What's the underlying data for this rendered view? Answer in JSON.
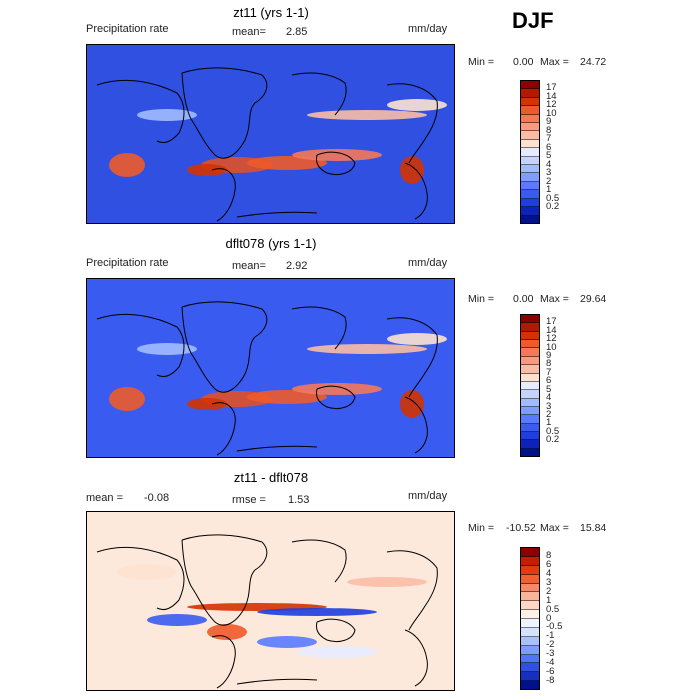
{
  "season": "DJF",
  "panels": [
    {
      "title": "zt11 (yrs 1-1)",
      "left_label": "Precipitation rate",
      "mean_label": "mean=",
      "mean_value": "2.85",
      "units": "mm/day",
      "min_label": "Min =",
      "min_value": "0.00",
      "max_label": "Max =",
      "max_value": "24.72",
      "colorbar": {
        "colors": [
          "#8b0000",
          "#b01a00",
          "#d43200",
          "#ee5a2a",
          "#f4785a",
          "#f89a80",
          "#fbbca6",
          "#fde2d0",
          "#e6ecff",
          "#c4d4ff",
          "#a2bbff",
          "#7f9cff",
          "#5a7bff",
          "#3a5bf0",
          "#1e3ee0",
          "#0c22b8",
          "#00118c"
        ],
        "ticks": [
          "17",
          "14",
          "12",
          "10",
          "9",
          "8",
          "7",
          "6",
          "5",
          "4",
          "3",
          "2",
          "1",
          "0.5",
          "0.2"
        ]
      }
    },
    {
      "title": "dflt078 (yrs 1-1)",
      "left_label": "Precipitation rate",
      "mean_label": "mean=",
      "mean_value": "2.92",
      "units": "mm/day",
      "min_label": "Min =",
      "min_value": "0.00",
      "max_label": "Max =",
      "max_value": "29.64",
      "colorbar": {
        "colors": [
          "#8b0000",
          "#b01a00",
          "#d43200",
          "#ee5a2a",
          "#f4785a",
          "#f89a80",
          "#fbbca6",
          "#fde2d0",
          "#e6ecff",
          "#c4d4ff",
          "#a2bbff",
          "#7f9cff",
          "#5a7bff",
          "#3a5bf0",
          "#1e3ee0",
          "#0c22b8",
          "#00118c"
        ],
        "ticks": [
          "17",
          "14",
          "12",
          "10",
          "9",
          "8",
          "7",
          "6",
          "5",
          "4",
          "3",
          "2",
          "1",
          "0.5",
          "0.2"
        ]
      }
    },
    {
      "title": "zt11 - dflt078",
      "left_label": "mean =",
      "left_value": "-0.08",
      "mean_label": "rmse =",
      "mean_value": "1.53",
      "units": "mm/day",
      "min_label": "Min =",
      "min_value": "-10.52",
      "max_label": "Max =",
      "max_value": "15.84",
      "colorbar": {
        "colors": [
          "#8b0000",
          "#c41e00",
          "#e03c10",
          "#f06030",
          "#f68a68",
          "#fab49a",
          "#fdd6c4",
          "#fff1e8",
          "#eef4ff",
          "#d4e2ff",
          "#a8c0ff",
          "#7c9cff",
          "#5076f4",
          "#2f50e0",
          "#1530c0",
          "#00118c"
        ],
        "ticks": [
          "8",
          "6",
          "4",
          "3",
          "2",
          "1",
          "0.5",
          "0",
          "-0.5",
          "-1",
          "-2",
          "-3",
          "-4",
          "-6",
          "-8"
        ]
      }
    }
  ]
}
